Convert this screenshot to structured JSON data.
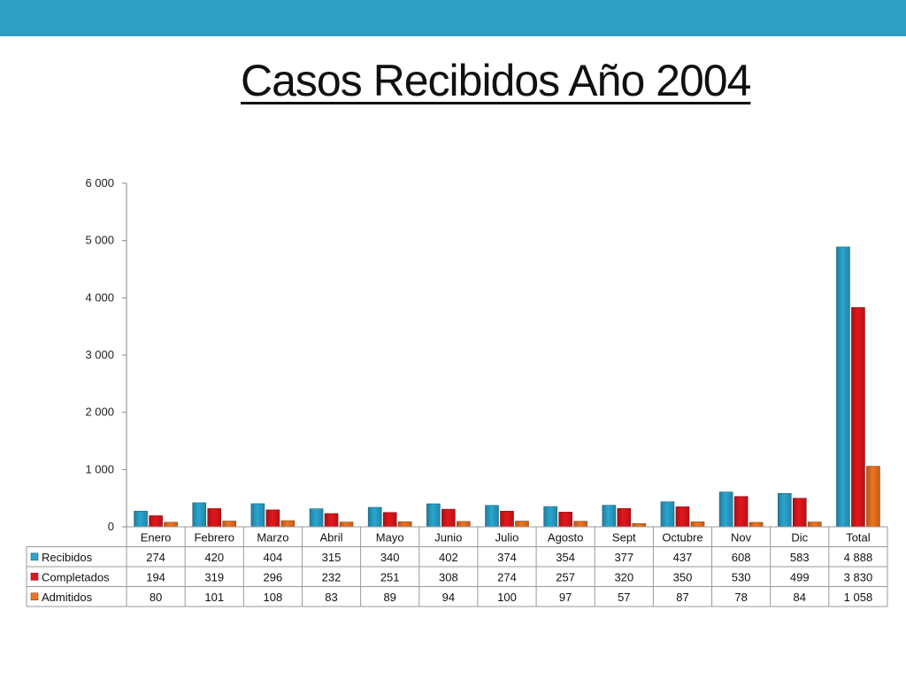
{
  "colors": {
    "top_bar": "#2e9fc3",
    "recibidos": "#2aa6d0",
    "completados": "#e3171c",
    "admitidos": "#f0741f"
  },
  "slide": {
    "title": "Casos Recibidos Año 2004"
  },
  "chart_data": {
    "type": "bar",
    "title": "",
    "xlabel": "",
    "ylabel": "",
    "ylim": [
      0,
      6000
    ],
    "y_ticks": [
      0,
      1000,
      2000,
      3000,
      4000,
      5000,
      6000
    ],
    "y_tick_labels": [
      "0",
      "1 000",
      "2 000",
      "3 000",
      "4 000",
      "5 000",
      "6 000"
    ],
    "categories": [
      "Enero",
      "Febrero",
      "Marzo",
      "Abril",
      "Mayo",
      "Junio",
      "Julio",
      "Agosto",
      "Sept",
      "Octubre",
      "Nov",
      "Dic",
      "Total"
    ],
    "series": [
      {
        "name": "Recibidos",
        "color": "#2aa6d0",
        "values": [
          274,
          420,
          404,
          315,
          340,
          402,
          374,
          354,
          377,
          437,
          608,
          583,
          4888
        ],
        "labels": [
          "274",
          "420",
          "404",
          "315",
          "340",
          "402",
          "374",
          "354",
          "377",
          "437",
          "608",
          "583",
          "4 888"
        ]
      },
      {
        "name": "Completados",
        "color": "#e3171c",
        "values": [
          194,
          319,
          296,
          232,
          251,
          308,
          274,
          257,
          320,
          350,
          530,
          499,
          3830
        ],
        "labels": [
          "194",
          "319",
          "296",
          "232",
          "251",
          "308",
          "274",
          "257",
          "320",
          "350",
          "530",
          "499",
          "3 830"
        ]
      },
      {
        "name": "Admitidos",
        "color": "#f0741f",
        "values": [
          80,
          101,
          108,
          83,
          89,
          94,
          100,
          97,
          57,
          87,
          78,
          84,
          1058
        ],
        "labels": [
          "80",
          "101",
          "108",
          "83",
          "89",
          "94",
          "100",
          "97",
          "57",
          "87",
          "78",
          "84",
          "1 058"
        ]
      }
    ],
    "grid": false,
    "legend": "data-table"
  }
}
